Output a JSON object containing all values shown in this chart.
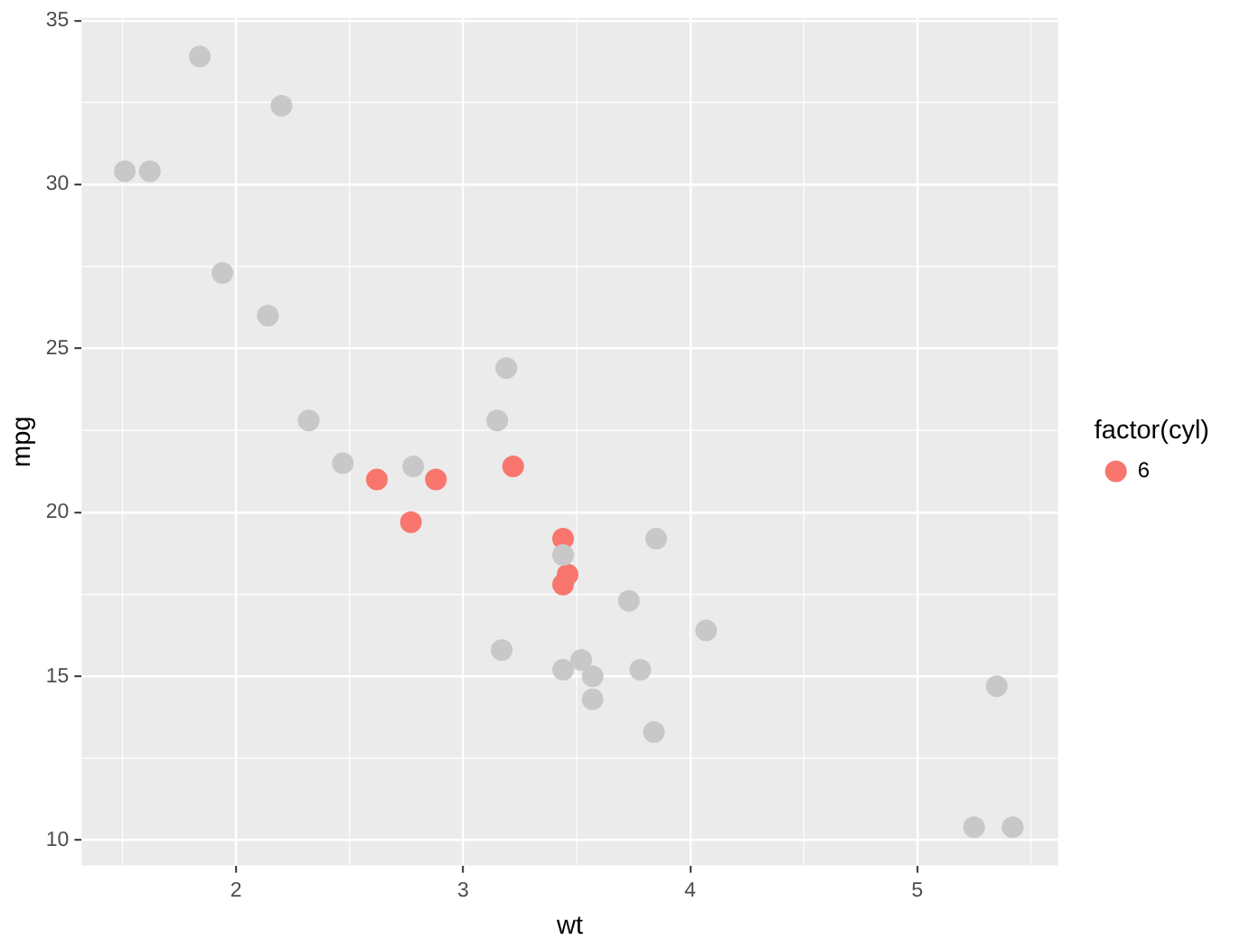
{
  "chart_data": {
    "type": "scatter",
    "xlabel": "wt",
    "ylabel": "mpg",
    "legend_title": "factor(cyl)",
    "legend": "right",
    "grid": true,
    "marker": "circle",
    "xlim": [
      1.32,
      5.62
    ],
    "ylim": [
      9.23,
      35.08
    ],
    "xticks": [
      2,
      3,
      4,
      5
    ],
    "yticks": [
      10,
      15,
      20,
      25,
      30,
      35
    ],
    "series": [
      {
        "color": "#c8c8c8",
        "x": [
          2.32,
          3.19,
          3.15,
          2.2,
          1.62,
          1.84,
          2.47,
          1.94,
          2.14,
          1.51,
          2.78,
          3.44,
          3.57,
          4.07,
          3.73,
          3.78,
          5.25,
          5.42,
          5.35,
          3.52,
          3.44,
          3.84,
          3.85,
          3.17,
          3.57
        ],
        "values": [
          22.8,
          24.4,
          22.8,
          32.4,
          30.4,
          33.9,
          21.5,
          27.3,
          26.0,
          30.4,
          21.4,
          18.7,
          14.3,
          16.4,
          17.3,
          15.2,
          10.4,
          10.4,
          14.7,
          15.5,
          15.2,
          13.3,
          19.2,
          15.8,
          15.0
        ]
      },
      {
        "name": "6",
        "color": "#f8766d",
        "x": [
          2.62,
          2.88,
          3.22,
          3.46,
          3.44,
          3.44,
          2.77
        ],
        "values": [
          21.0,
          21.0,
          21.4,
          18.1,
          19.2,
          17.8,
          19.7
        ]
      }
    ]
  }
}
